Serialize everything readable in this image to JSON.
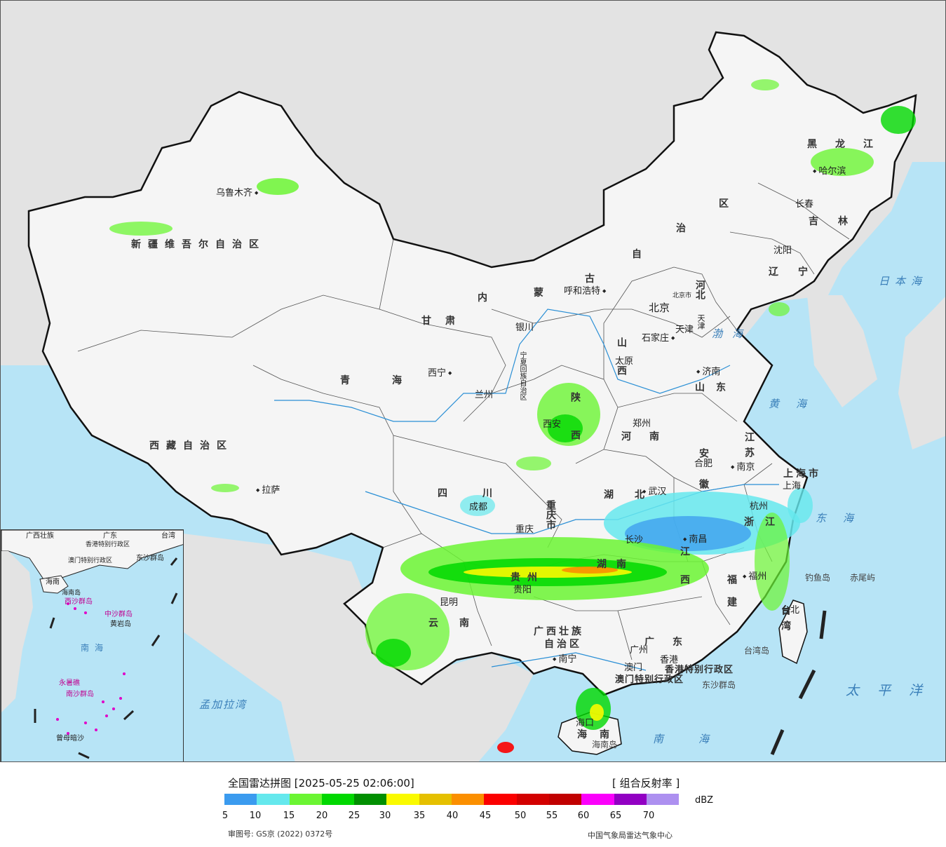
{
  "map": {
    "province_labels": [
      "新疆维吾尔自治区",
      "西藏自治区",
      "青海",
      "甘肃",
      "四川",
      "云南",
      "广西壮族",
      "自治区",
      "黑龙江",
      "吉林",
      "辽宁",
      "河北",
      "山西",
      "山东",
      "河南",
      "陕西",
      "湖北",
      "湖南",
      "江西",
      "安徽",
      "江苏",
      "浙江",
      "福建",
      "广东",
      "海南",
      "重庆市",
      "上海市",
      "内",
      "蒙",
      "古",
      "自",
      "治",
      "区",
      "宁夏回族自治区",
      "贵州",
      "香港特别行政区",
      "澳门特别行政区",
      "台湾",
      "天津"
    ],
    "city_labels": [
      "乌鲁木齐",
      "拉萨",
      "西宁",
      "兰州",
      "银川",
      "呼和浩特",
      "北京",
      "北京市",
      "天津",
      "石家庄",
      "太原",
      "济南",
      "郑州",
      "西安",
      "合肥",
      "南京",
      "上海",
      "武汉",
      "杭州",
      "成都",
      "重庆",
      "贵阳",
      "长沙",
      "南昌",
      "福州",
      "昆明",
      "南宁",
      "广州",
      "香港",
      "澳门",
      "海口",
      "台北",
      "沈阳",
      "长春",
      "哈尔滨"
    ],
    "sea_labels": [
      "日本海",
      "渤海",
      "黄海",
      "东海",
      "太平洋",
      "南海",
      "孟加拉湾"
    ],
    "island_labels": [
      "钓鱼岛",
      "赤尾屿",
      "台湾岛",
      "东沙群岛",
      "海南岛"
    ],
    "inset_labels": [
      "广西壮族",
      "广东",
      "台湾",
      "香港特别行政区",
      "澳门特别行政区",
      "东沙群岛",
      "海南",
      "海南岛",
      "西沙群岛",
      "中沙群岛",
      "黄岩岛",
      "南海",
      "永暑礁",
      "南沙群岛",
      "曾母暗沙"
    ]
  },
  "legend": {
    "title": "全国雷达拼图 [2025-05-25 02:06:00]",
    "product": "[ 组合反射率 ]",
    "unit": "dBZ",
    "ticks": [
      "5",
      "10",
      "15",
      "20",
      "25",
      "30",
      "35",
      "40",
      "45",
      "50",
      "55",
      "60",
      "65",
      "70"
    ],
    "colors": [
      "#3b9bef",
      "#65e8ed",
      "#6bf533",
      "#00d800",
      "#018f01",
      "#fafa00",
      "#e5c000",
      "#fb8f00",
      "#fb0000",
      "#d30000",
      "#c10000",
      "#fb00fb",
      "#9200c3",
      "#ad90f0"
    ],
    "review_number": "审图号: GS京 (2022) 0372号",
    "organization": "中国气象局雷达气象中心"
  }
}
